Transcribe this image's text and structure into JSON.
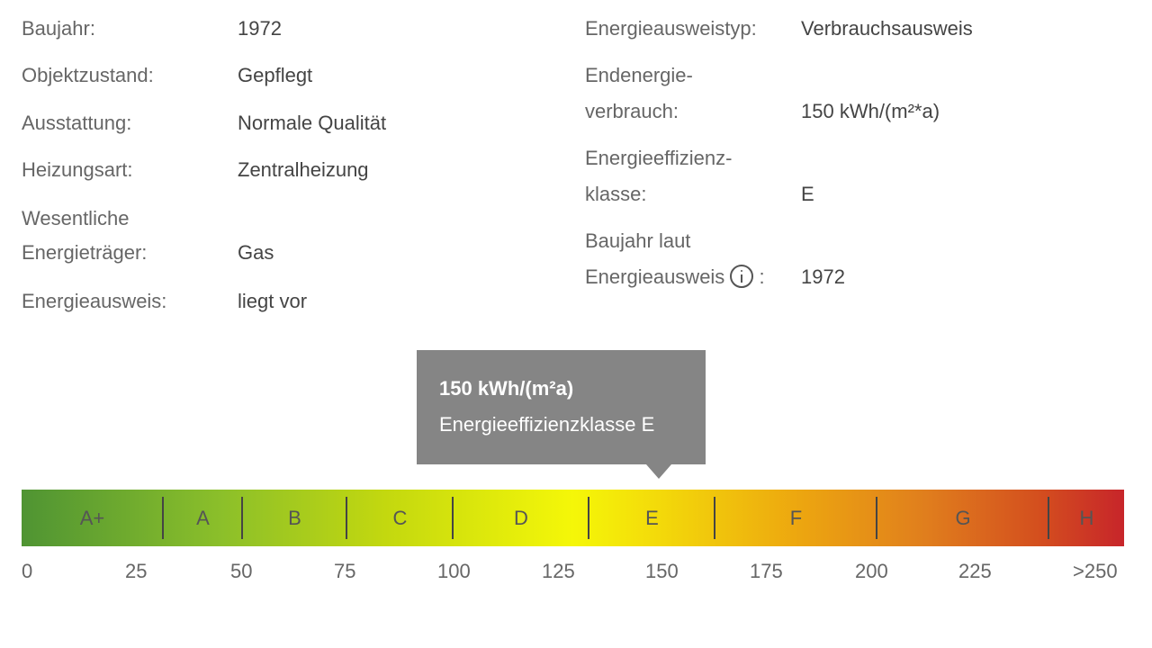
{
  "left_details": [
    {
      "label": "Baujahr:",
      "value": "1972"
    },
    {
      "label": "Objektzustand:",
      "value": "Gepflegt"
    },
    {
      "label": "Ausstattung:",
      "value": "Normale Qualität"
    },
    {
      "label": "Heizungsart:",
      "value": "Zentralheizung"
    },
    {
      "label_line1": "Wesentliche",
      "label_line2": "Energieträger:",
      "value": "Gas"
    },
    {
      "label": "Energieausweis:",
      "value": "liegt vor"
    }
  ],
  "right_details": [
    {
      "label": "Energieausweistyp:",
      "value": "Verbrauchsausweis"
    },
    {
      "label_line1": "Endenergie-",
      "label_line2": "verbrauch:",
      "value": "150 kWh/(m²*a)"
    },
    {
      "label_line1": "Energieeffizienz-",
      "label_line2": "klasse:",
      "value": "E"
    },
    {
      "label_line1": "Baujahr laut",
      "label_line2": "Energieausweis",
      "suffix": ":",
      "value": "1972",
      "icon": "info-icon"
    }
  ],
  "tooltip": {
    "line1": "150 kWh/(m²a)",
    "line2": "Energieeffizienzklasse E"
  },
  "energy_scale": {
    "classes": [
      "A+",
      "A",
      "B",
      "C",
      "D",
      "E",
      "F",
      "G",
      "H"
    ],
    "ticks": [
      "0",
      "25",
      "50",
      "75",
      "100",
      "125",
      "150",
      "175",
      "200",
      "225",
      ">250"
    ],
    "current_value_kwh": 150,
    "current_class": "E",
    "colors": {
      "start": "#4f9433",
      "middle": "#f5f708",
      "end": "#c7252a"
    }
  }
}
